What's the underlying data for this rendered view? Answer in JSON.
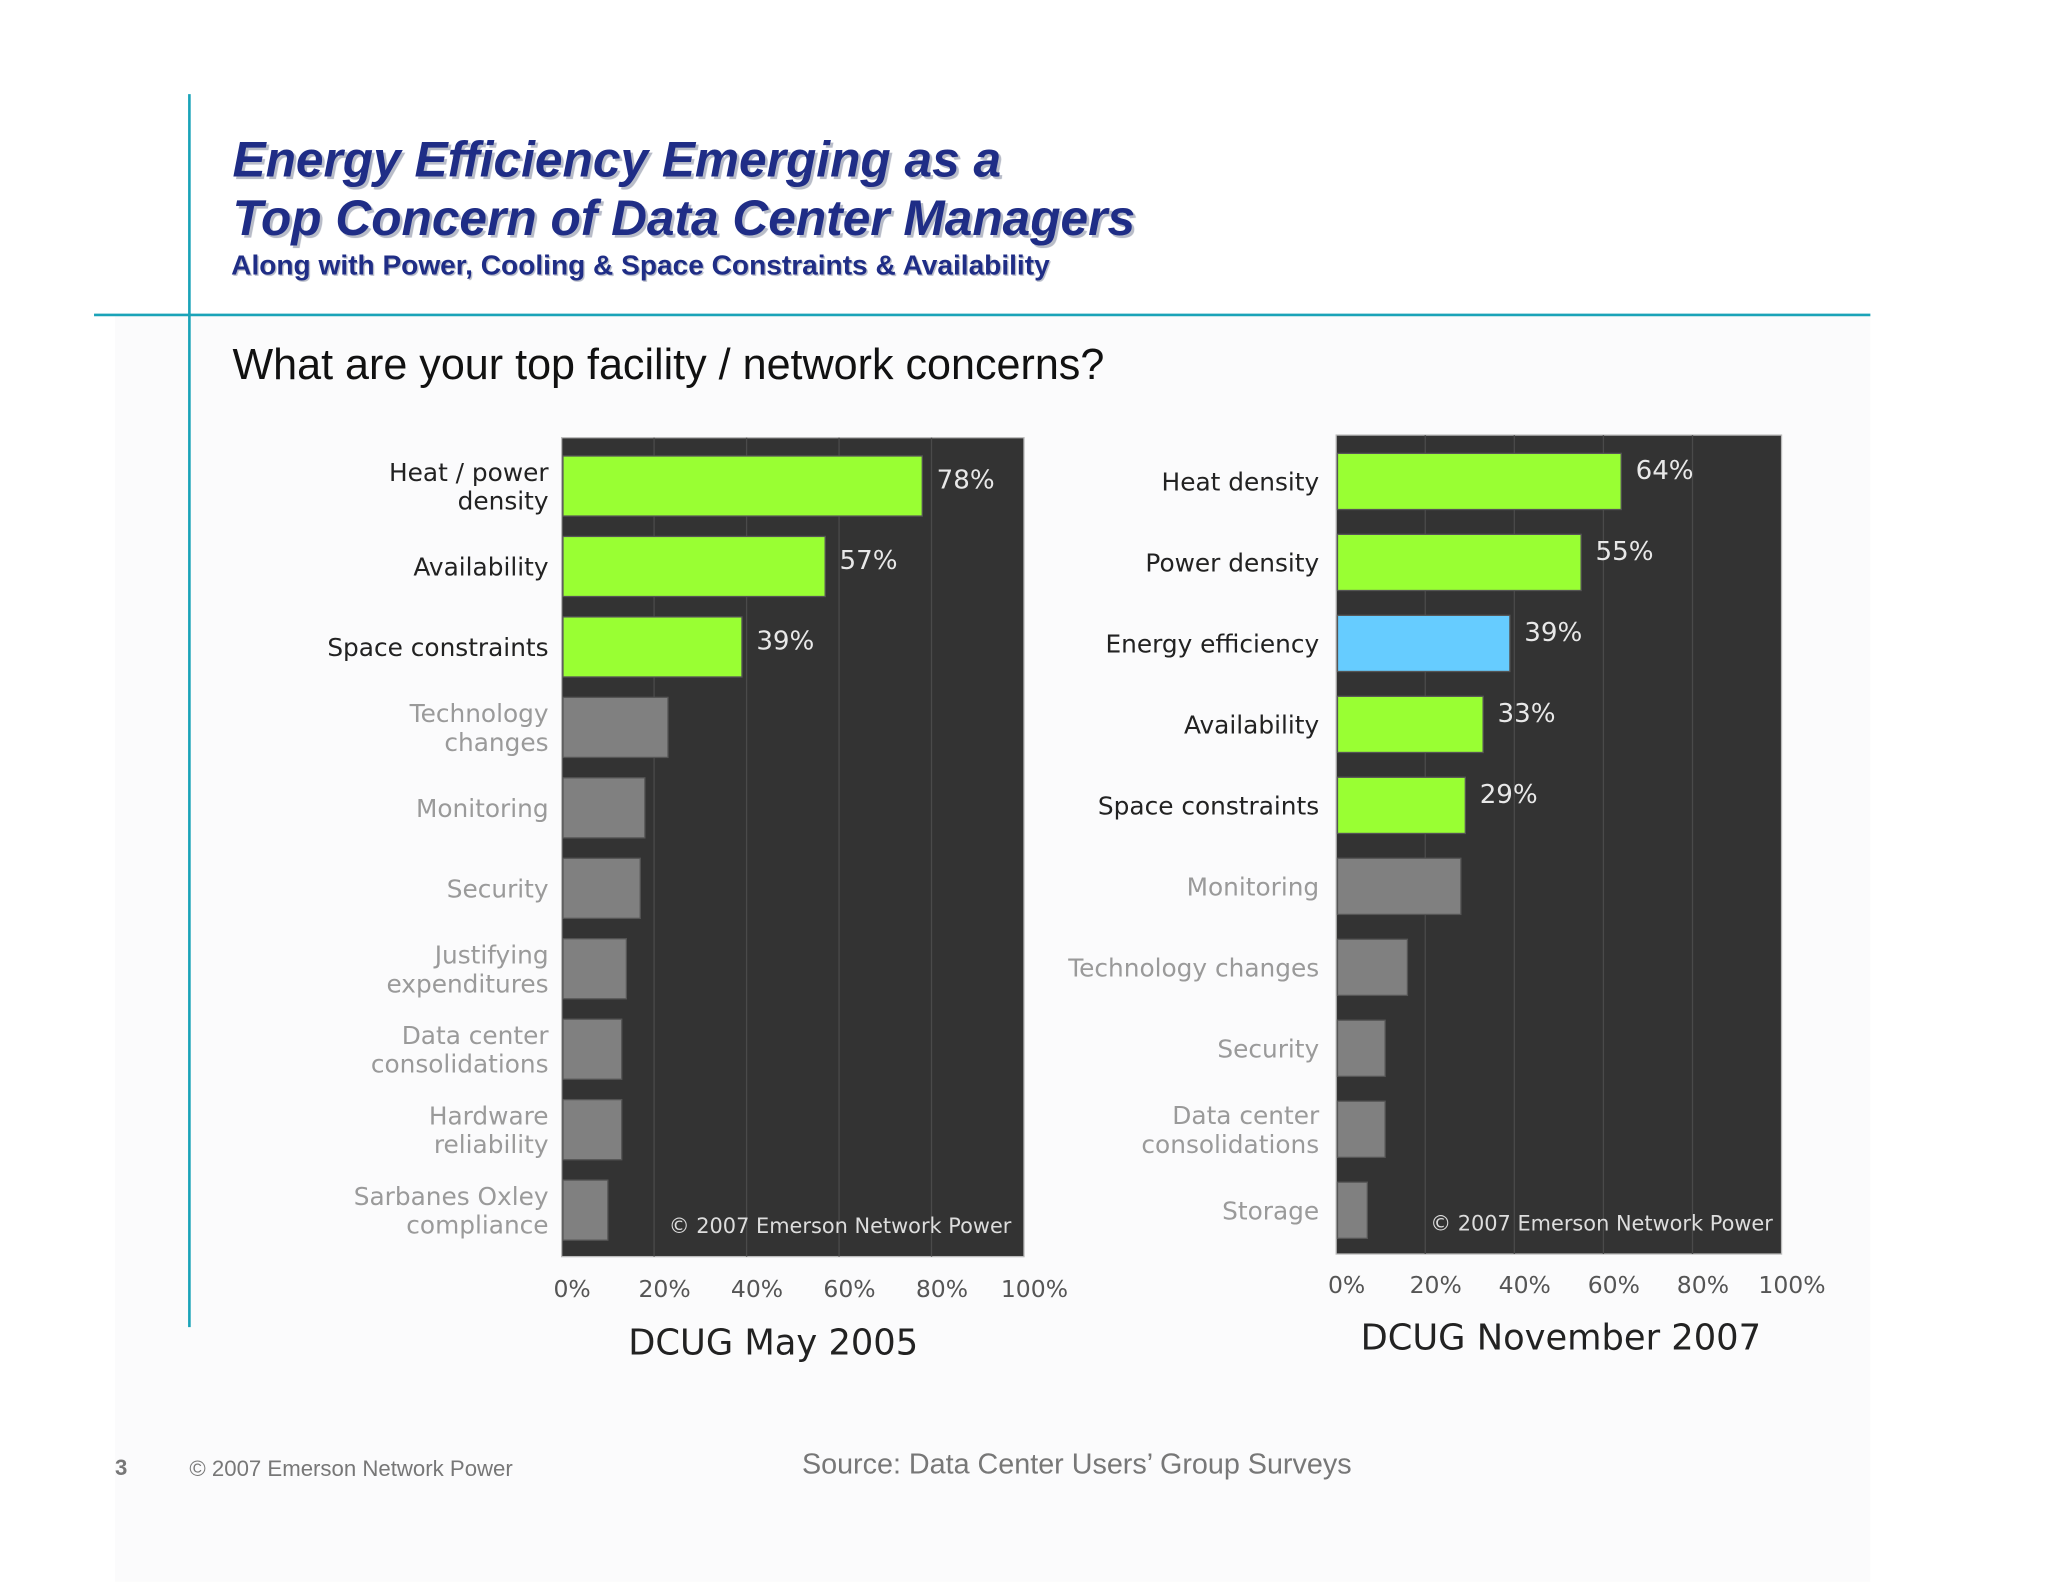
{
  "slide": {
    "title_line1": "Energy Efficiency Emerging as a",
    "title_line2": "Top Concern of Data Center Managers",
    "subtitle": "Along with Power, Cooling & Space Constraints & Availability",
    "question": "What are your top facility / network concerns?",
    "page_number": "3",
    "footer_copyright": "© 2007 Emerson Network Power",
    "source": "Source: Data Center Users’ Group Surveys",
    "accent_color": "#1aa3b8",
    "title_color": "#1f2d86"
  },
  "chart_data": [
    {
      "type": "bar",
      "orientation": "horizontal",
      "title": "DCUG May 2005",
      "watermark": "© 2007 Emerson Network Power",
      "xlim": [
        0,
        100
      ],
      "x_ticks": [
        "0%",
        "20%",
        "40%",
        "60%",
        "80%",
        "100%"
      ],
      "grid": true,
      "colors": {
        "highlight": "#99ff33",
        "other": "#808080",
        "panel": "#333333"
      },
      "categories": [
        {
          "label": [
            "Heat / power",
            "density"
          ],
          "value": 78,
          "value_label": "78%",
          "highlight": "green"
        },
        {
          "label": [
            "Availability"
          ],
          "value": 57,
          "value_label": "57%",
          "highlight": "green"
        },
        {
          "label": [
            "Space  constraints"
          ],
          "value": 39,
          "value_label": "39%",
          "highlight": "green"
        },
        {
          "label": [
            "Technology",
            "changes"
          ],
          "value": 23,
          "highlight": "none"
        },
        {
          "label": [
            "Monitoring"
          ],
          "value": 18,
          "highlight": "none"
        },
        {
          "label": [
            "Security"
          ],
          "value": 17,
          "highlight": "none"
        },
        {
          "label": [
            "Justifying",
            "expenditures"
          ],
          "value": 14,
          "highlight": "none"
        },
        {
          "label": [
            "Data center",
            "consolidations"
          ],
          "value": 13,
          "highlight": "none"
        },
        {
          "label": [
            "Hardware",
            "reliability"
          ],
          "value": 13,
          "highlight": "none"
        },
        {
          "label": [
            "Sarbanes Oxley",
            "compliance"
          ],
          "value": 10,
          "highlight": "none"
        }
      ]
    },
    {
      "type": "bar",
      "orientation": "horizontal",
      "title": "DCUG November 2007",
      "watermark": "© 2007 Emerson Network Power",
      "xlim": [
        0,
        100
      ],
      "x_ticks": [
        "0%",
        "20%",
        "40%",
        "60%",
        "80%",
        "100%"
      ],
      "grid": true,
      "colors": {
        "highlight": "#99ff33",
        "energy": "#66ccff",
        "other": "#808080",
        "panel": "#333333"
      },
      "categories": [
        {
          "label": [
            "Heat density"
          ],
          "value": 64,
          "value_label": "64%",
          "highlight": "green"
        },
        {
          "label": [
            "Power density"
          ],
          "value": 55,
          "value_label": "55%",
          "highlight": "green"
        },
        {
          "label": [
            "Energy efficiency"
          ],
          "value": 39,
          "value_label": "39%",
          "highlight": "blue"
        },
        {
          "label": [
            "Availability"
          ],
          "value": 33,
          "value_label": "33%",
          "highlight": "green"
        },
        {
          "label": [
            "Space constraints"
          ],
          "value": 29,
          "value_label": "29%",
          "highlight": "green"
        },
        {
          "label": [
            "Monitoring"
          ],
          "value": 28,
          "highlight": "none"
        },
        {
          "label": [
            "Technology changes"
          ],
          "value": 16,
          "highlight": "none"
        },
        {
          "label": [
            "Security"
          ],
          "value": 11,
          "highlight": "none"
        },
        {
          "label": [
            "Data center",
            "consolidations"
          ],
          "value": 11,
          "highlight": "none"
        },
        {
          "label": [
            "Storage"
          ],
          "value": 7,
          "highlight": "none"
        }
      ]
    }
  ]
}
